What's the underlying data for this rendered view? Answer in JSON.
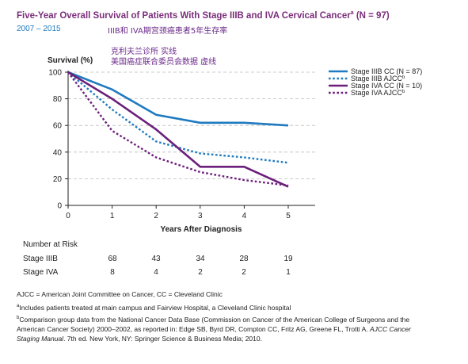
{
  "header": {
    "title_main": "Five-Year Overall Survival of Patients With Stage IIIB and IVA Cervical Cancer",
    "title_sup": "a",
    "title_tail": " (N = 97)",
    "subtitle": "2007 – 2015"
  },
  "overlay_text": {
    "line1": "IIIB和 IVA期宫颈癌患者5年生存率",
    "line2": "克利夫兰诊所 实线",
    "line3": "美国癌症联合委员会数据 虚线"
  },
  "chart_data": {
    "type": "line",
    "title": "Five-Year Overall Survival of Patients With Stage IIIB and IVA Cervical Cancer (N = 97)",
    "ylabel": "Survival (%)",
    "xlabel": "Years After Diagnosis",
    "x": [
      0,
      1,
      2,
      3,
      4,
      5
    ],
    "xlim": [
      0,
      5
    ],
    "ylim": [
      0,
      100
    ],
    "yticks": [
      0,
      20,
      40,
      60,
      80,
      100
    ],
    "grid": "horizontal dashed",
    "legend_position": "right",
    "series": [
      {
        "name": "Stage IIIB CC (N = 87)",
        "values": [
          100,
          87,
          68,
          62,
          62,
          60
        ],
        "color": "#1f7abf",
        "dash": "solid"
      },
      {
        "name": "Stage IIIB AJCC",
        "sup": "b",
        "values": [
          100,
          72,
          48,
          39,
          36,
          32
        ],
        "color": "#1f7abf",
        "dash": "dotted"
      },
      {
        "name": "Stage IVA CC (N = 10)",
        "values": [
          100,
          80,
          57,
          29,
          29,
          14
        ],
        "color": "#6b1f7a",
        "dash": "solid"
      },
      {
        "name": "Stage IVA AJCC",
        "sup": "b",
        "values": [
          100,
          56,
          36,
          25,
          19,
          15
        ],
        "color": "#6b1f7a",
        "dash": "dotted"
      }
    ]
  },
  "risk_table": {
    "title": "Number at Risk",
    "rows": [
      {
        "label": "Stage IIIB",
        "values": [
          "68",
          "43",
          "34",
          "28",
          "19"
        ]
      },
      {
        "label": "Stage IVA",
        "values": [
          "8",
          "4",
          "2",
          "2",
          "1"
        ]
      }
    ]
  },
  "footnotes": {
    "abbrev": "AJCC = American Joint Committee on Cancer, CC = Cleveland Clinic",
    "a_mark": "a",
    "a_text": "Includes patients treated at main campus and Fairview Hospital, a Cleveland Clinic hospital",
    "b_mark": "b",
    "b_line1": "Comparison group data from the National Cancer Data Base (Commission on Cancer of the American College of Surgeons and the",
    "b_line2_pre": "American Cancer Society) 2000–2002, as reported in: Edge SB, Byrd DR, Compton CC, Fritz AG, Greene FL, Trotti A. ",
    "b_line2_italic": "AJCC Cancer",
    "b_line3_italic": "Staging Manual",
    "b_line3_post": ". 7th ed. New York, NY: Springer Science & Business Media; 2010."
  }
}
